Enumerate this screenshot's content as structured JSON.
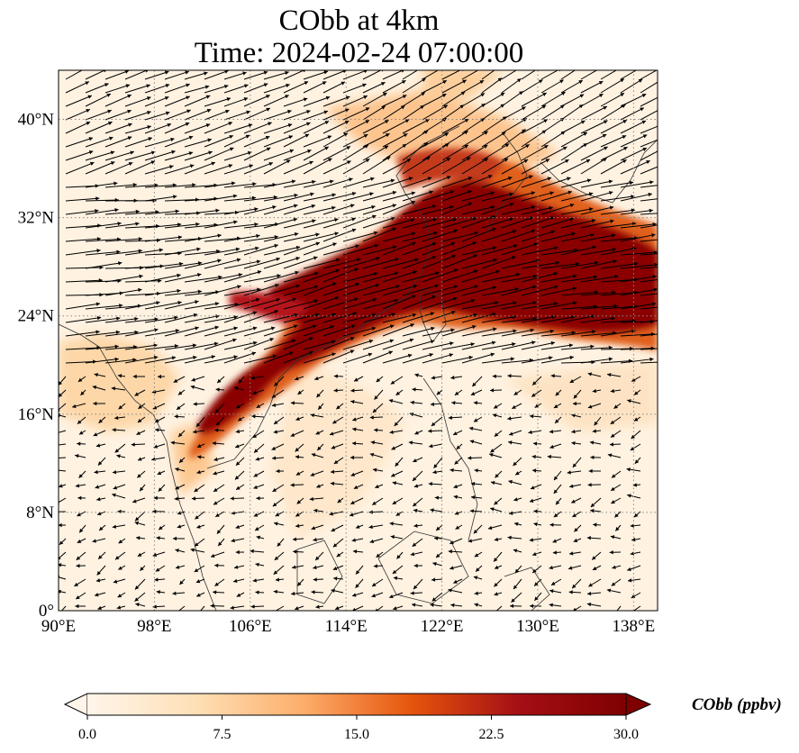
{
  "title": {
    "line1": "CObb at 4km",
    "line2": "Time: 2024-02-24 07:00:00"
  },
  "map": {
    "lon_range": [
      90,
      140
    ],
    "lat_range": [
      0,
      44
    ],
    "lon_ticks": [
      90,
      98,
      106,
      114,
      122,
      130,
      138
    ],
    "lon_tick_labels": [
      "90°E",
      "98°E",
      "106°E",
      "114°E",
      "122°E",
      "130°E",
      "138°E"
    ],
    "lat_ticks": [
      0,
      8,
      16,
      24,
      32,
      40
    ],
    "lat_tick_labels": [
      "0°",
      "8°N",
      "16°N",
      "24°N",
      "32°N",
      "40°N"
    ],
    "gridlines": "dotted",
    "field_colormap": [
      "#fff5eb",
      "#fdd0a2",
      "#fd8d3c",
      "#d94801",
      "#a50f15",
      "#7f0000"
    ],
    "wind_vectors": "black arrows"
  },
  "colorbar": {
    "label": "CObb (ppbv)",
    "range": [
      0,
      30
    ],
    "ticks": [
      "0.0",
      "7.5",
      "15.0",
      "22.5",
      "30.0"
    ],
    "extend": "both"
  }
}
